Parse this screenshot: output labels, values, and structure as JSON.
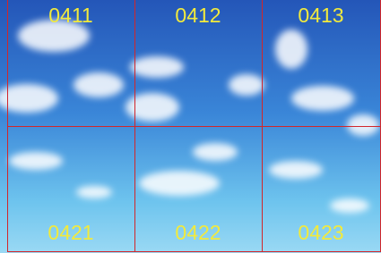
{
  "grid": {
    "rows": [
      [
        "0411",
        "0412",
        "0413"
      ],
      [
        "0421",
        "0422",
        "0423"
      ]
    ]
  }
}
